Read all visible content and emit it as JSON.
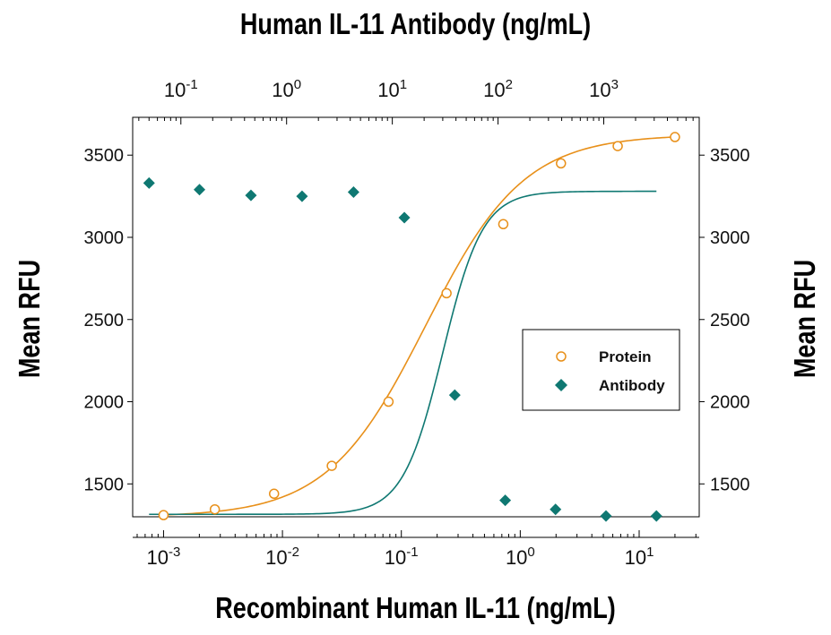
{
  "chart_data": {
    "type": "scatter",
    "title_top": "Human IL-11 Antibody (ng/mL)",
    "xlabel": "Recombinant Human IL-11 (ng/mL)",
    "ylabel_left": "Mean RFU",
    "ylabel_right": "Mean RFU",
    "x_scale": "log",
    "xlim": [
      0.00055,
      32
    ],
    "x_top_scale": "log",
    "x_top_lim": [
      0.035,
      8000
    ],
    "ylim": [
      1300,
      3730
    ],
    "yticks": [
      1500,
      2000,
      2500,
      3000,
      3500
    ],
    "ytick_labels": [
      "1500",
      "2000",
      "2500",
      "3000",
      "3500"
    ],
    "xticks_bottom": [
      {
        "value": 0.001,
        "base": "10",
        "exp": "-3"
      },
      {
        "value": 0.01,
        "base": "10",
        "exp": "-2"
      },
      {
        "value": 0.1,
        "base": "10",
        "exp": "-1"
      },
      {
        "value": 1,
        "base": "10",
        "exp": "0"
      },
      {
        "value": 10,
        "base": "10",
        "exp": "1"
      }
    ],
    "xticks_top": [
      {
        "value": 0.1,
        "base": "10",
        "exp": "-1"
      },
      {
        "value": 1,
        "base": "10",
        "exp": "0"
      },
      {
        "value": 10,
        "base": "10",
        "exp": "1"
      },
      {
        "value": 100,
        "base": "10",
        "exp": "2"
      },
      {
        "value": 1000,
        "base": "10",
        "exp": "3"
      }
    ],
    "legend": {
      "position": "center-right",
      "entries": [
        "Protein",
        "Antibody"
      ]
    },
    "series": [
      {
        "name": "Protein",
        "axis": "bottom",
        "marker": "open-circle",
        "color": "#e8901a",
        "points": [
          {
            "x": 0.001,
            "y": 1310
          },
          {
            "x": 0.0027,
            "y": 1345
          },
          {
            "x": 0.0085,
            "y": 1440
          },
          {
            "x": 0.026,
            "y": 1610
          },
          {
            "x": 0.078,
            "y": 2000
          },
          {
            "x": 0.24,
            "y": 2660
          },
          {
            "x": 0.72,
            "y": 3080
          },
          {
            "x": 2.2,
            "y": 3450
          },
          {
            "x": 6.6,
            "y": 3555
          },
          {
            "x": 20,
            "y": 3610
          }
        ],
        "fit": {
          "bottom": 1300,
          "top": 3625,
          "ec50": 0.16,
          "hill": 1.05
        }
      },
      {
        "name": "Antibody",
        "axis": "top",
        "marker": "filled-diamond",
        "color": "#0f7872",
        "points": [
          {
            "x": 0.05,
            "y": 3330
          },
          {
            "x": 0.15,
            "y": 3290
          },
          {
            "x": 0.46,
            "y": 3255
          },
          {
            "x": 1.4,
            "y": 3250
          },
          {
            "x": 4.3,
            "y": 3275
          },
          {
            "x": 13,
            "y": 3120
          },
          {
            "x": 39,
            "y": 2040
          },
          {
            "x": 117,
            "y": 1400
          },
          {
            "x": 350,
            "y": 1345
          },
          {
            "x": 1050,
            "y": 1305
          },
          {
            "x": 3150,
            "y": 1305
          }
        ],
        "fit": {
          "bottom": 1315,
          "top": 3280,
          "ec50": 30,
          "hill": 2.3
        }
      }
    ]
  }
}
